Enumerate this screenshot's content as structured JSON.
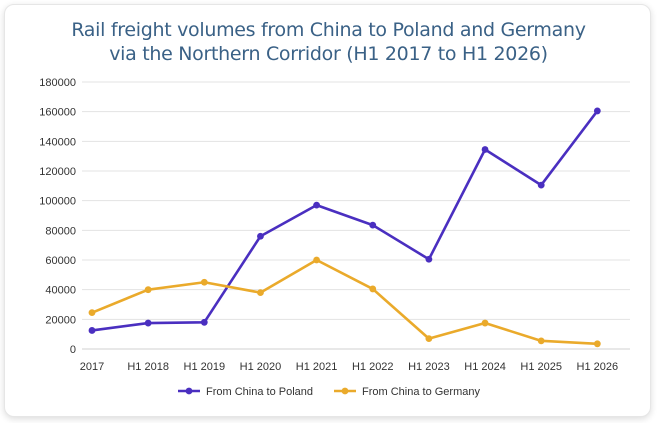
{
  "chart_data": {
    "type": "line",
    "title_lines": [
      "Rail freight volumes from China to Poland and Germany",
      "via the Northern Corridor (H1 2017 to H1 2026)"
    ],
    "categories": [
      "2017",
      "H1 2018",
      "H1 2019",
      "H1 2020",
      "H1 2021",
      "H1 2022",
      "H1 2023",
      "H1 2024",
      "H1 2025",
      "H1 2026"
    ],
    "y_ticks": [
      "0",
      "20000",
      "40000",
      "60000",
      "80000",
      "100000",
      "120000",
      "140000",
      "160000",
      "180000"
    ],
    "ylim": [
      0,
      180000
    ],
    "grid": true,
    "legend_position": "bottom",
    "series": [
      {
        "name": "From China to Poland",
        "color": "#4a2fc0",
        "values": [
          12500,
          17500,
          18000,
          76000,
          97000,
          83500,
          60500,
          134500,
          110500,
          160500
        ]
      },
      {
        "name": "From China to Germany",
        "color": "#eaaa2b",
        "values": [
          24500,
          40000,
          45000,
          38000,
          60000,
          40500,
          7000,
          17500,
          5500,
          3500
        ]
      }
    ]
  }
}
